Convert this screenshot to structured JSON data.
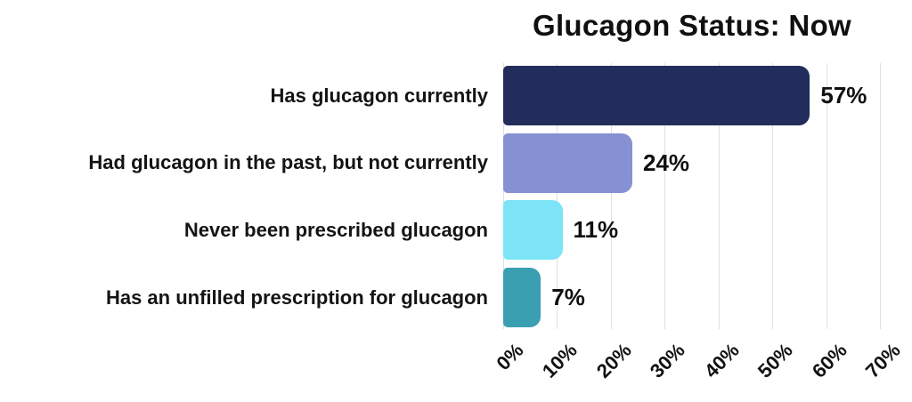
{
  "chart_data": {
    "type": "bar",
    "orientation": "horizontal",
    "title": "Glucagon Status: Now",
    "categories": [
      "Has glucagon currently",
      "Had glucagon in the past, but not currently",
      "Never been prescribed glucagon",
      "Has an unfilled prescription for glucagon"
    ],
    "values": [
      57,
      24,
      11,
      7
    ],
    "value_labels": [
      "57%",
      "24%",
      "11%",
      "7%"
    ],
    "bar_colors": [
      "#222d5b",
      "#8591d2",
      "#7ce4f6",
      "#399fb1"
    ],
    "xlim": [
      0,
      70
    ],
    "x_tick_values": [
      0,
      10,
      20,
      30,
      40,
      50,
      60,
      70
    ],
    "x_ticks": [
      "0%",
      "10%",
      "20%",
      "30%",
      "40%",
      "50%",
      "60%",
      "70%"
    ],
    "x_tick_rotation_deg": 45,
    "grid": "vertical-only",
    "gridline_color": "#e0e0e0",
    "legend": "none",
    "background_color": "#ffffff",
    "text_color": "#121212"
  }
}
